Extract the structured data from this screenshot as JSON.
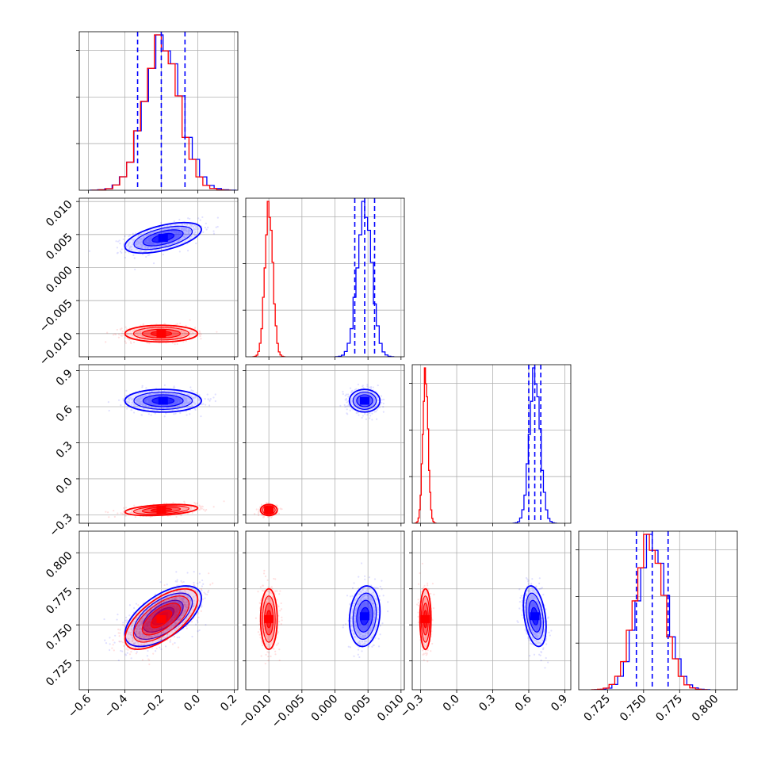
{
  "chart_data": {
    "type": "corner",
    "title": "",
    "colors": {
      "blue": "#0000ff",
      "red": "#ff0000"
    },
    "grid": true,
    "parameters": [
      {
        "index": 0,
        "range": [
          -0.65,
          0.22
        ],
        "ticks": [
          -0.6,
          -0.4,
          -0.2,
          0.0,
          0.2
        ],
        "tick_labels": [
          "−0.6",
          "−0.4",
          "−0.2",
          "0.0",
          "0.2"
        ]
      },
      {
        "index": 1,
        "range": [
          -0.0135,
          0.0105
        ],
        "ticks": [
          -0.01,
          -0.005,
          0.0,
          0.005,
          0.01
        ],
        "tick_labels": [
          "−0.010",
          "−0.005",
          "0.000",
          "0.005",
          "0.010"
        ]
      },
      {
        "index": 2,
        "range": [
          -0.37,
          0.95
        ],
        "ticks": [
          -0.3,
          0.0,
          0.3,
          0.6,
          0.9
        ],
        "tick_labels": [
          "−0.3",
          "0.0",
          "0.3",
          "0.6",
          "0.9"
        ]
      },
      {
        "index": 3,
        "range": [
          0.705,
          0.815
        ],
        "ticks": [
          0.725,
          0.75,
          0.775,
          0.8
        ],
        "tick_labels": [
          "0.725",
          "0.750",
          "0.775",
          "0.800"
        ]
      }
    ],
    "series": [
      {
        "color": "blue",
        "mean": [
          -0.19,
          0.0045,
          0.65,
          0.756
        ],
        "std": [
          0.1,
          0.0011,
          0.045,
          0.01
        ],
        "corr": [
          [
            1,
            0.55,
            0,
            0.6
          ],
          [
            0.55,
            1,
            0,
            0.15
          ],
          [
            0,
            0,
            1,
            -0.35
          ],
          [
            0.6,
            0.15,
            -0.35,
            1
          ]
        ],
        "quantiles": [
          [
            -0.33,
            -0.2,
            -0.07
          ],
          [
            0.003,
            0.0045,
            0.006
          ],
          [
            0.6,
            0.65,
            0.7
          ],
          [
            0.745,
            0.756,
            0.767
          ]
        ]
      },
      {
        "color": "red",
        "mean": [
          -0.2,
          -0.01,
          -0.26,
          0.754
        ],
        "std": [
          0.095,
          0.0006,
          0.022,
          0.01
        ],
        "corr": [
          [
            1,
            0,
            0.35,
            0.65
          ],
          [
            0,
            1,
            0,
            0
          ],
          [
            0.35,
            0,
            1,
            0
          ],
          [
            0.65,
            0,
            0,
            1
          ]
        ],
        "quantiles": null
      }
    ]
  }
}
